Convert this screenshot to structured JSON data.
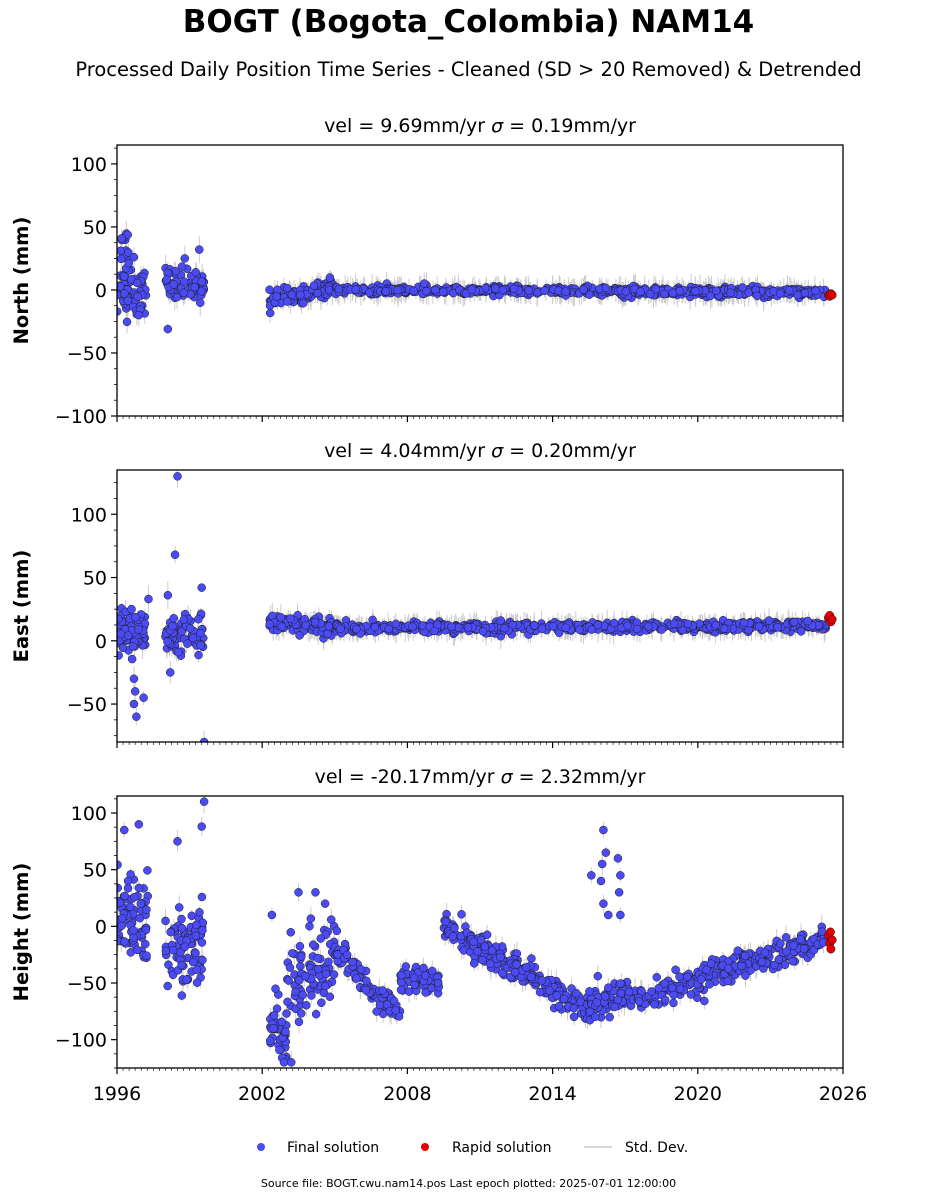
{
  "header": {
    "title": "BOGT (Bogota_Colombia) NAM14",
    "subtitle": "Processed Daily Position Time Series - Cleaned (SD > 20 Removed) & Detrended"
  },
  "footer": {
    "source_text": "Source file: BOGT.cwu.nam14.pos  Last epoch plotted: 2025-07-01 12:00:00"
  },
  "colors": {
    "final": "#4b4bf5",
    "rapid": "#e30000",
    "stddev": "#cccccc",
    "marker_edge": "#1a1a1a"
  },
  "chart_data": [
    {
      "type": "scatter",
      "panel": "north",
      "title": "vel = 9.69mm/yr   σ = 0.19mm/yr",
      "title_parts": [
        "vel = 9.69mm/yr   ",
        "σ",
        " = 0.19mm/yr"
      ],
      "ylabel": "North (mm)",
      "xlim": [
        1996,
        2026
      ],
      "ylim": [
        -100,
        115
      ],
      "yticks": [
        100,
        50,
        0,
        -50,
        -100
      ],
      "ytick_labels": [
        "100",
        "50",
        "0",
        "−50",
        "−100"
      ],
      "xticks": [
        1996,
        2002,
        2008,
        2014,
        2020,
        2026
      ],
      "show_xtick_labels": false,
      "series": [
        {
          "name": "Final solution",
          "segments": [
            {
              "x": [
                1996.0,
                1997.2
              ],
              "y": [
                0,
                0
              ],
              "spread": 14,
              "density": 110
            },
            {
              "x": [
                1996.0,
                1996.5
              ],
              "y": [
                30,
                35
              ],
              "spread": 8,
              "density": 25
            },
            {
              "x": [
                1998.0,
                1999.6
              ],
              "y": [
                3,
                5
              ],
              "spread": 9,
              "density": 120
            },
            {
              "x": [
                2002.3,
                2005.0
              ],
              "y": [
                -8,
                2
              ],
              "spread": 4,
              "density": 230
            },
            {
              "x": [
                2005.0,
                2025.3
              ],
              "y": [
                0,
                -2
              ],
              "spread": 2.3,
              "density": 1100
            }
          ],
          "points": [
            [
              1998.1,
              -31
            ],
            [
              1999.4,
              32
            ],
            [
              1998.8,
              25
            ],
            [
              1996.9,
              -20
            ],
            [
              1996.7,
              26
            ]
          ]
        },
        {
          "name": "Rapid solution",
          "points": [
            [
              2025.4,
              -4
            ],
            [
              2025.45,
              -5
            ],
            [
              2025.5,
              -3
            ],
            [
              2025.55,
              -4
            ]
          ]
        }
      ]
    },
    {
      "type": "scatter",
      "panel": "east",
      "title": "vel = 4.04mm/yr   σ = 0.20mm/yr",
      "title_parts": [
        "vel = 4.04mm/yr   ",
        "σ",
        " = 0.20mm/yr"
      ],
      "ylabel": "East (mm)",
      "xlim": [
        1996,
        2026
      ],
      "ylim": [
        -80,
        135
      ],
      "yticks": [
        100,
        50,
        0,
        -50
      ],
      "ytick_labels": [
        "100",
        "50",
        "0",
        "−50"
      ],
      "xticks": [
        1996,
        2002,
        2008,
        2014,
        2020,
        2026
      ],
      "show_xtick_labels": false,
      "series": [
        {
          "name": "Final solution",
          "segments": [
            {
              "x": [
                1996.0,
                1997.2
              ],
              "y": [
                10,
                5
              ],
              "spread": 12,
              "density": 110
            },
            {
              "x": [
                1998.0,
                1999.6
              ],
              "y": [
                5,
                3
              ],
              "spread": 11,
              "density": 120
            },
            {
              "x": [
                2002.3,
                2005.0
              ],
              "y": [
                15,
                10
              ],
              "spread": 4,
              "density": 230
            },
            {
              "x": [
                2005.0,
                2025.3
              ],
              "y": [
                10,
                12
              ],
              "spread": 2.5,
              "density": 1100
            }
          ],
          "points": [
            [
              1998.5,
              130
            ],
            [
              1998.4,
              68
            ],
            [
              1996.7,
              -50
            ],
            [
              1996.8,
              -60
            ],
            [
              1996.75,
              -40
            ],
            [
              1996.7,
              -30
            ],
            [
              1997.1,
              -45
            ],
            [
              1998.2,
              -25
            ],
            [
              1999.5,
              42
            ],
            [
              1999.6,
              -80
            ],
            [
              1997.3,
              33
            ],
            [
              1998.1,
              36
            ],
            [
              1996.6,
              25
            ]
          ]
        },
        {
          "name": "Rapid solution",
          "points": [
            [
              2025.4,
              18
            ],
            [
              2025.45,
              20
            ],
            [
              2025.5,
              15
            ],
            [
              2025.55,
              17
            ]
          ]
        }
      ]
    },
    {
      "type": "scatter",
      "panel": "height",
      "title": "vel = -20.17mm/yr   σ = 2.32mm/yr",
      "title_parts": [
        "vel = -20.17mm/yr   ",
        "σ",
        " = 2.32mm/yr"
      ],
      "ylabel": "Height (mm)",
      "xlim": [
        1996,
        2026
      ],
      "ylim": [
        -125,
        115
      ],
      "yticks": [
        100,
        50,
        0,
        -50,
        -100
      ],
      "ytick_labels": [
        "100",
        "50",
        "0",
        "−50",
        "−100"
      ],
      "xticks": [
        1996,
        2002,
        2008,
        2014,
        2020,
        2026
      ],
      "xtick_labels": [
        "1996",
        "2002",
        "2008",
        "2014",
        "2020",
        "2026"
      ],
      "show_xtick_labels": true,
      "series": [
        {
          "name": "Final solution",
          "segments": [
            {
              "x": [
                1996.0,
                1997.3
              ],
              "y": [
                10,
                0
              ],
              "spread": 25,
              "density": 140
            },
            {
              "x": [
                1998.0,
                1999.6
              ],
              "y": [
                -20,
                -10
              ],
              "spread": 28,
              "density": 150
            },
            {
              "x": [
                2002.3,
                2003.0
              ],
              "y": [
                -85,
                -95
              ],
              "spread": 18,
              "density": 70
            },
            {
              "x": [
                2003.0,
                2005.0
              ],
              "y": [
                -60,
                -30
              ],
              "spread": 28,
              "density": 160
            },
            {
              "x": [
                2005.0,
                2007.7
              ],
              "y": [
                -20,
                -80
              ],
              "spread": 8,
              "density": 170
            },
            {
              "x": [
                2007.7,
                2009.3
              ],
              "y": [
                -45,
                -50
              ],
              "spread": 8,
              "density": 110
            },
            {
              "x": [
                2009.5,
                2015.5
              ],
              "y": [
                0,
                -75
              ],
              "spread": 8,
              "density": 430
            },
            {
              "x": [
                2015.5,
                2017.5
              ],
              "y": [
                -70,
                -60
              ],
              "spread": 9,
              "density": 140
            },
            {
              "x": [
                2017.5,
                2025.3
              ],
              "y": [
                -65,
                -10
              ],
              "spread": 8,
              "density": 500
            }
          ],
          "points": [
            [
              2016.1,
              85
            ],
            [
              2016.2,
              65
            ],
            [
              2016.05,
              55
            ],
            [
              2016.0,
              40
            ],
            [
              2016.1,
              20
            ],
            [
              2016.3,
              10
            ],
            [
              2016.7,
              60
            ],
            [
              2016.8,
              45
            ],
            [
              2016.75,
              30
            ],
            [
              2016.8,
              10
            ],
            [
              1996.3,
              85
            ],
            [
              1996.9,
              90
            ],
            [
              1999.6,
              110
            ],
            [
              1999.5,
              88
            ],
            [
              1998.5,
              75
            ],
            [
              2003.5,
              30
            ],
            [
              2004.2,
              30
            ],
            [
              2004.6,
              20
            ],
            [
              2002.4,
              10
            ],
            [
              2002.9,
              -120
            ],
            [
              2003.2,
              -120
            ],
            [
              2015.6,
              45
            ]
          ]
        },
        {
          "name": "Rapid solution",
          "points": [
            [
              2025.4,
              -8
            ],
            [
              2025.45,
              -15
            ],
            [
              2025.5,
              -20
            ],
            [
              2025.55,
              -12
            ],
            [
              2025.48,
              -5
            ]
          ]
        }
      ]
    }
  ],
  "legend": {
    "items": [
      {
        "label": "Final solution",
        "kind": "dot",
        "color": "#4b4bf5"
      },
      {
        "label": "Rapid solution",
        "kind": "dot",
        "color": "#e30000"
      },
      {
        "label": "Std. Dev.",
        "kind": "line",
        "color": "#cccccc"
      }
    ]
  }
}
